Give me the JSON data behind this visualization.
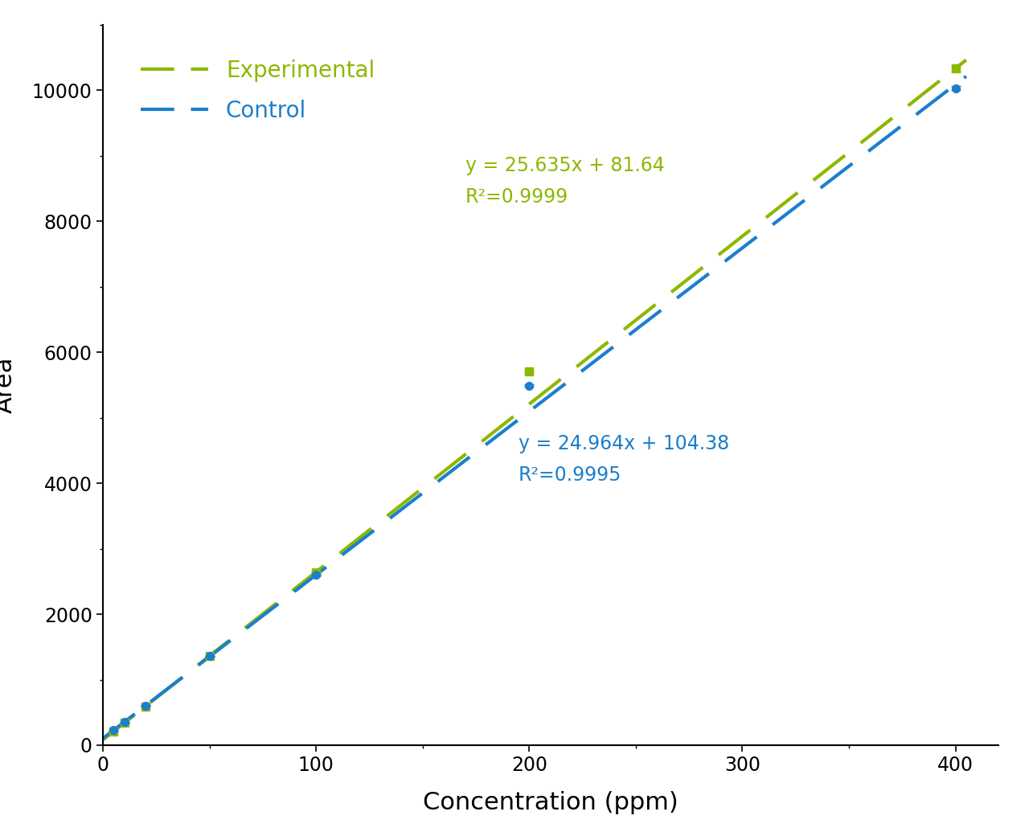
{
  "experimental_slope": 25.635,
  "experimental_intercept": 81.64,
  "experimental_r2": "0.9999",
  "control_slope": 24.964,
  "control_intercept": 104.38,
  "control_r2": "0.9995",
  "x_data": [
    5,
    10,
    20,
    50,
    100,
    200,
    400
  ],
  "experimental_y": [
    209.8,
    337.6,
    593.7,
    1362.9,
    2637.6,
    5708.7,
    10335.4
  ],
  "experimental_yerr": [
    2.0,
    2.0,
    3.0,
    5.0,
    8.0,
    18.0,
    45.0
  ],
  "control_y": [
    228.2,
    353.2,
    604.1,
    1356.6,
    2598.4,
    5491.4,
    10030.0
  ],
  "control_yerr": [
    3.0,
    4.0,
    5.0,
    8.0,
    10.0,
    15.0,
    30.0
  ],
  "experimental_color": "#8cb800",
  "control_color": "#1b7fcc",
  "xlabel": "Concentration (ppm)",
  "ylabel": "Area",
  "xlim": [
    0,
    420
  ],
  "ylim": [
    0,
    11000
  ],
  "legend_experimental": "Experimental",
  "legend_control": "Control",
  "exp_eq_text": "y = 25.635x + 81.64\nR²=0.9999",
  "ctrl_eq_text": "y = 24.964x + 104.38\nR²=0.9995",
  "exp_eq_x": 170,
  "exp_eq_y": 9000,
  "ctrl_eq_x": 195,
  "ctrl_eq_y": 4750,
  "background_color": "#ffffff",
  "xlabel_fontsize": 22,
  "ylabel_fontsize": 22,
  "tick_fontsize": 17,
  "legend_fontsize": 20,
  "annotation_fontsize": 17,
  "line_width": 3.0,
  "marker_size": 7
}
